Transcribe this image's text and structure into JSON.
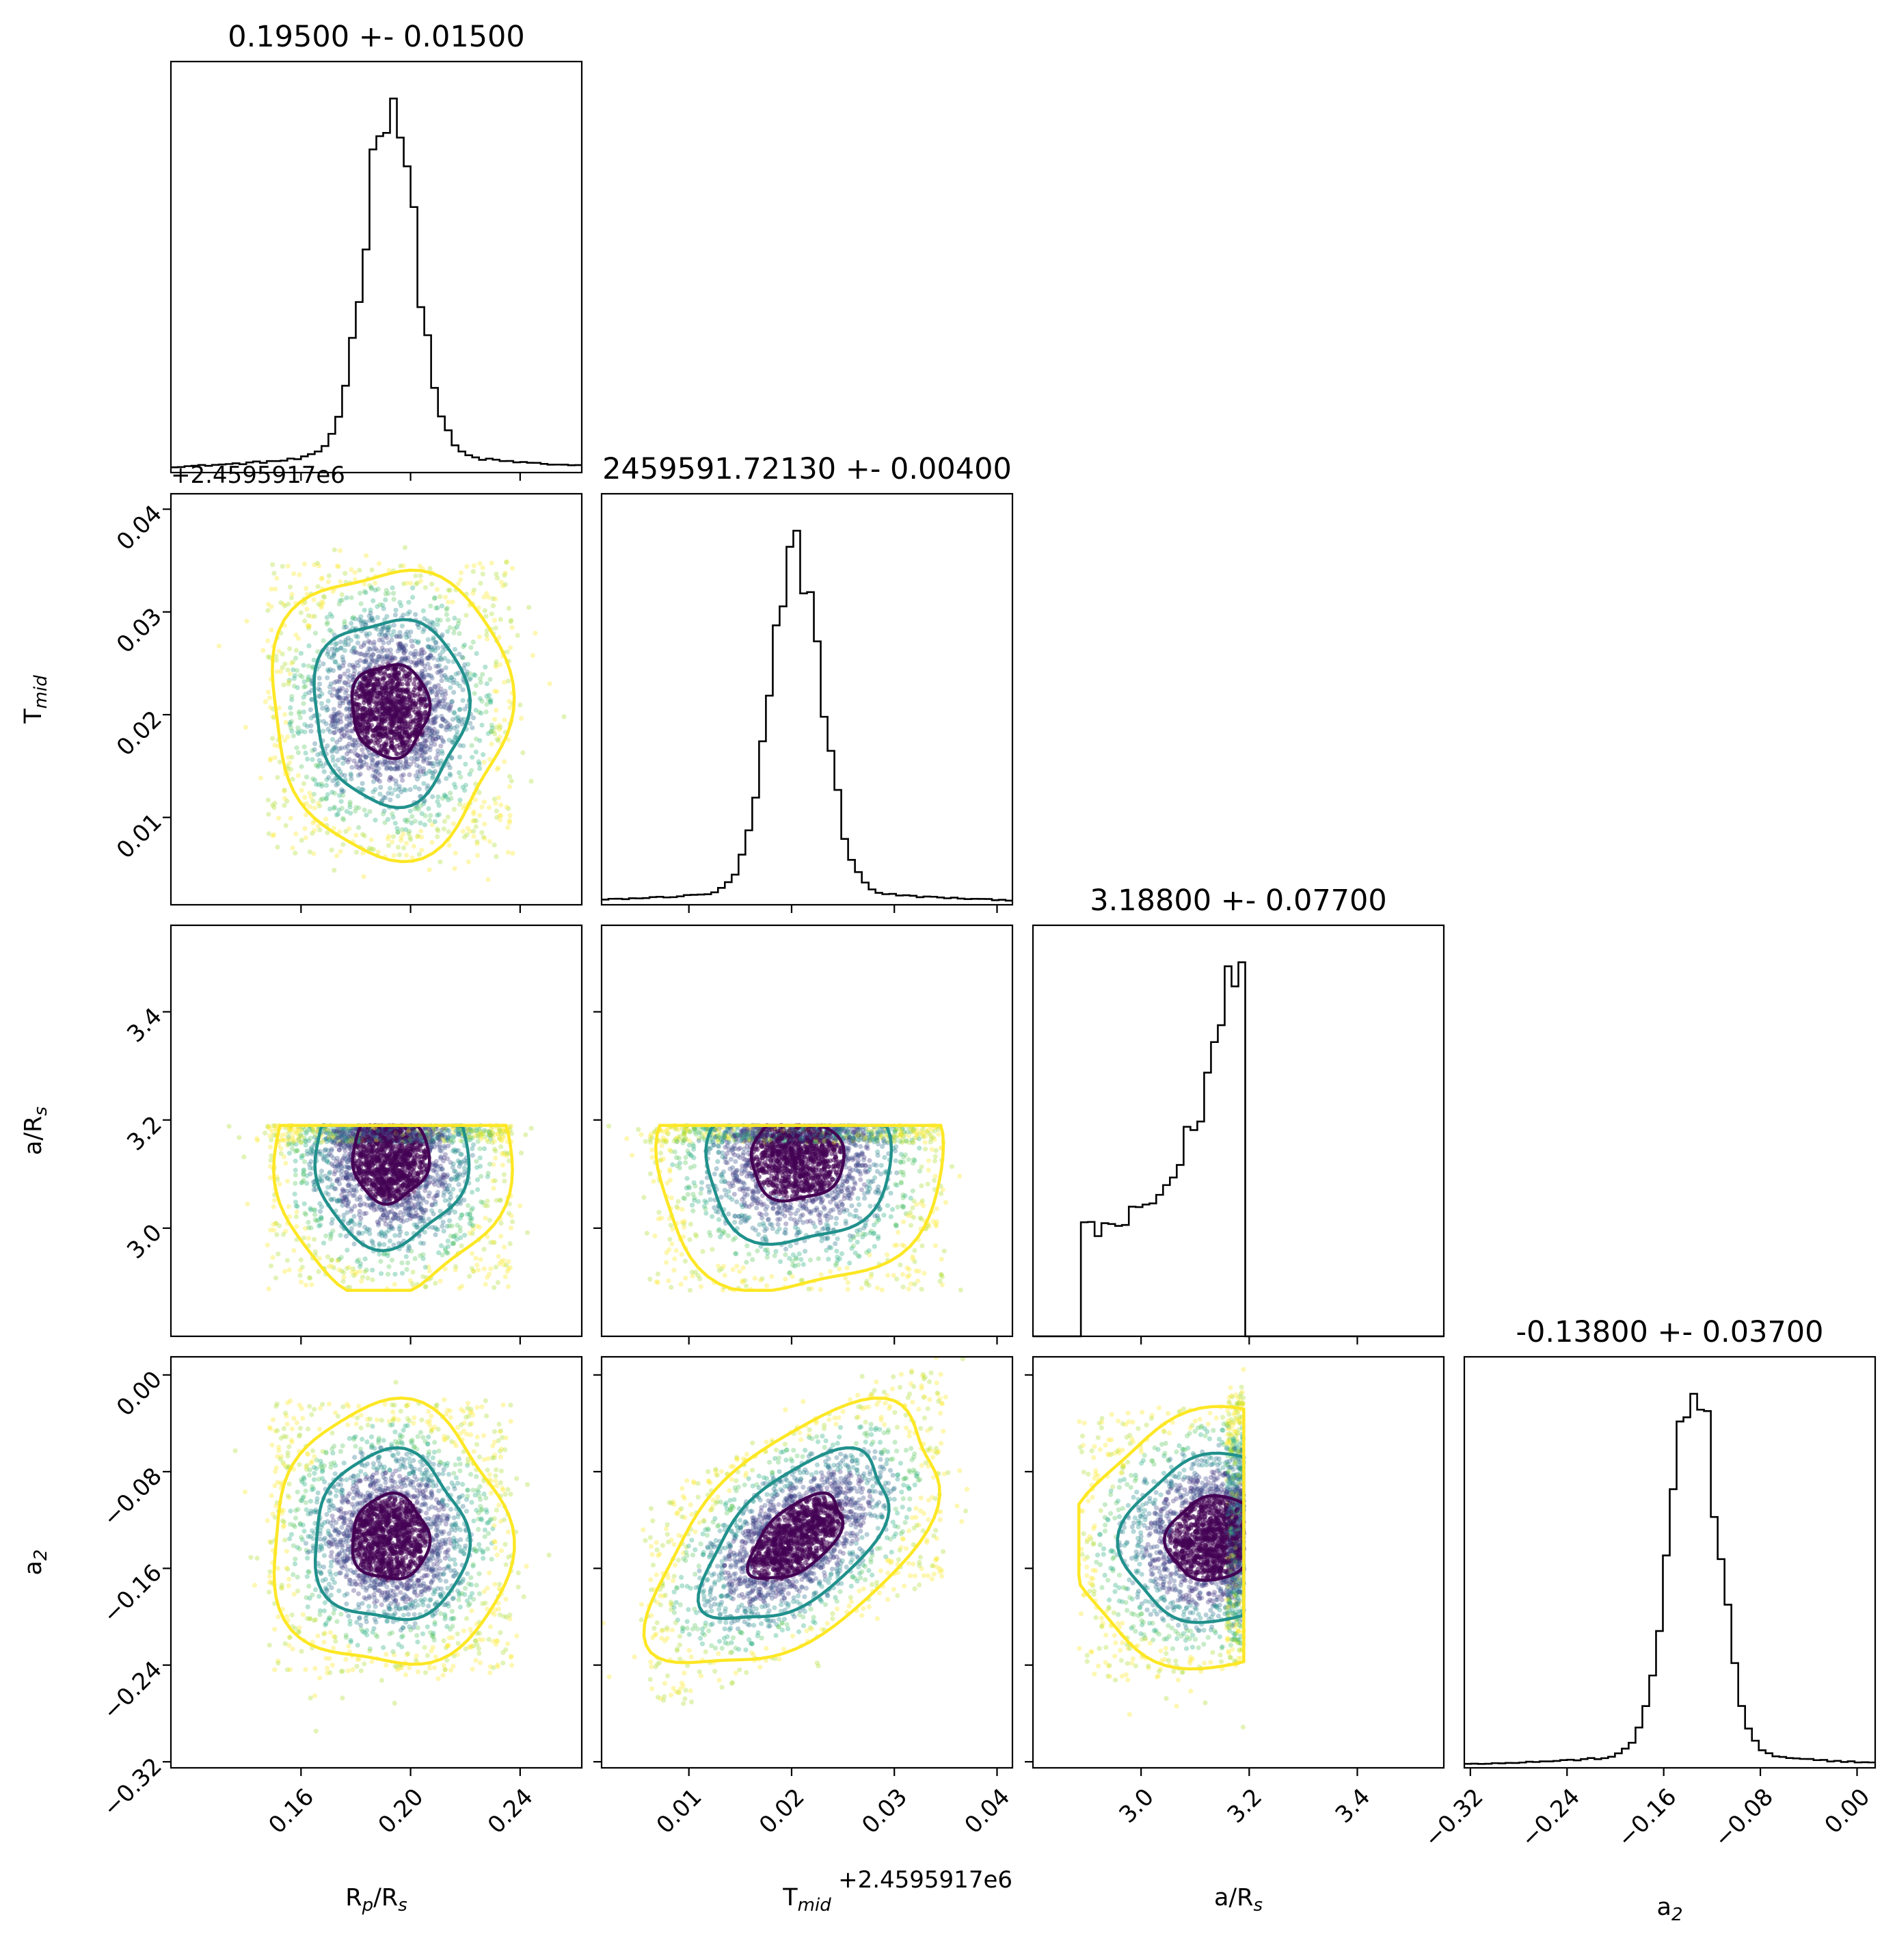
{
  "chart_data": {
    "type": "corner",
    "parameters": [
      {
        "key": "rp",
        "label": "R",
        "label_sub": "p",
        "label_tail": "/R",
        "label_sub2": "s",
        "title": "0.19500 +- 0.01500",
        "range": [
          0.1125,
          0.2625
        ],
        "ticks": [
          {
            "v": 0.16,
            "t": "0.16"
          },
          {
            "v": 0.2,
            "t": "0.20"
          },
          {
            "v": 0.24,
            "t": "0.24"
          }
        ],
        "mode": 0.1925,
        "sigma": 0.009,
        "base": 0.07
      },
      {
        "key": "tmid",
        "label": "T",
        "label_sub": "mid",
        "label_tail": "",
        "label_sub2": "",
        "title": "2459591.72130 +- 0.00400",
        "range": [
          0.0015,
          0.0415
        ],
        "offset": "+2.4595917e6",
        "ticks": [
          {
            "v": 0.01,
            "t": "0.01"
          },
          {
            "v": 0.02,
            "t": "0.02"
          },
          {
            "v": 0.03,
            "t": "0.03"
          },
          {
            "v": 0.04,
            "t": "0.04"
          }
        ],
        "mode": 0.0205,
        "sigma": 0.0025,
        "base": 0.055
      },
      {
        "key": "ars",
        "label": "a/R",
        "label_sub": "s",
        "label_tail": "",
        "label_sub2": "",
        "title": "3.18800 +- 0.07700",
        "range": [
          2.8,
          3.56
        ],
        "ticks": [
          {
            "v": 3.0,
            "t": "3.0"
          },
          {
            "v": 3.2,
            "t": "3.2"
          },
          {
            "v": 3.4,
            "t": "3.4"
          }
        ],
        "mode": 3.18,
        "sigma": 0.05,
        "base": 0.25,
        "trunc": [
          2.885,
          3.19
        ]
      },
      {
        "key": "a2",
        "label": "a",
        "label_sub": "2",
        "label_tail": "",
        "label_sub2": "",
        "title": "-0.13800 +- 0.03700",
        "range": [
          -0.325,
          0.015
        ],
        "ticks": [
          {
            "v": -0.32,
            "t": "−0.32"
          },
          {
            "v": -0.24,
            "t": "−0.24"
          },
          {
            "v": -0.16,
            "t": "−0.16"
          },
          {
            "v": -0.08,
            "t": "−0.08"
          },
          {
            "v": 0.0,
            "t": "0.00"
          }
        ],
        "mode": -0.135,
        "sigma": 0.02,
        "base": 0.05
      }
    ],
    "pairs": [
      {
        "row": 1,
        "col": 0,
        "cx": 0.1925,
        "cy": 0.0205,
        "sx": 0.014,
        "sy": 0.0045,
        "rho": 0.0
      },
      {
        "row": 2,
        "col": 0,
        "cx": 0.1925,
        "cy": 3.13,
        "sx": 0.014,
        "sy": 0.08,
        "rho": 0.0
      },
      {
        "row": 2,
        "col": 1,
        "cx": 0.0205,
        "cy": 3.13,
        "sx": 0.0045,
        "sy": 0.08,
        "rho": 0.0
      },
      {
        "row": 3,
        "col": 0,
        "cx": 0.1925,
        "cy": -0.135,
        "sx": 0.014,
        "sy": 0.035,
        "rho": 0.0
      },
      {
        "row": 3,
        "col": 1,
        "cx": 0.0205,
        "cy": -0.135,
        "sx": 0.0045,
        "sy": 0.035,
        "rho": 0.55
      },
      {
        "row": 3,
        "col": 2,
        "cx": 3.13,
        "cy": -0.135,
        "sx": 0.08,
        "sy": 0.035,
        "rho": 0.1
      }
    ],
    "colors": {
      "inner": "#440154",
      "middle": "#21918c",
      "outer": "#fde725",
      "hist": "#000000"
    }
  }
}
